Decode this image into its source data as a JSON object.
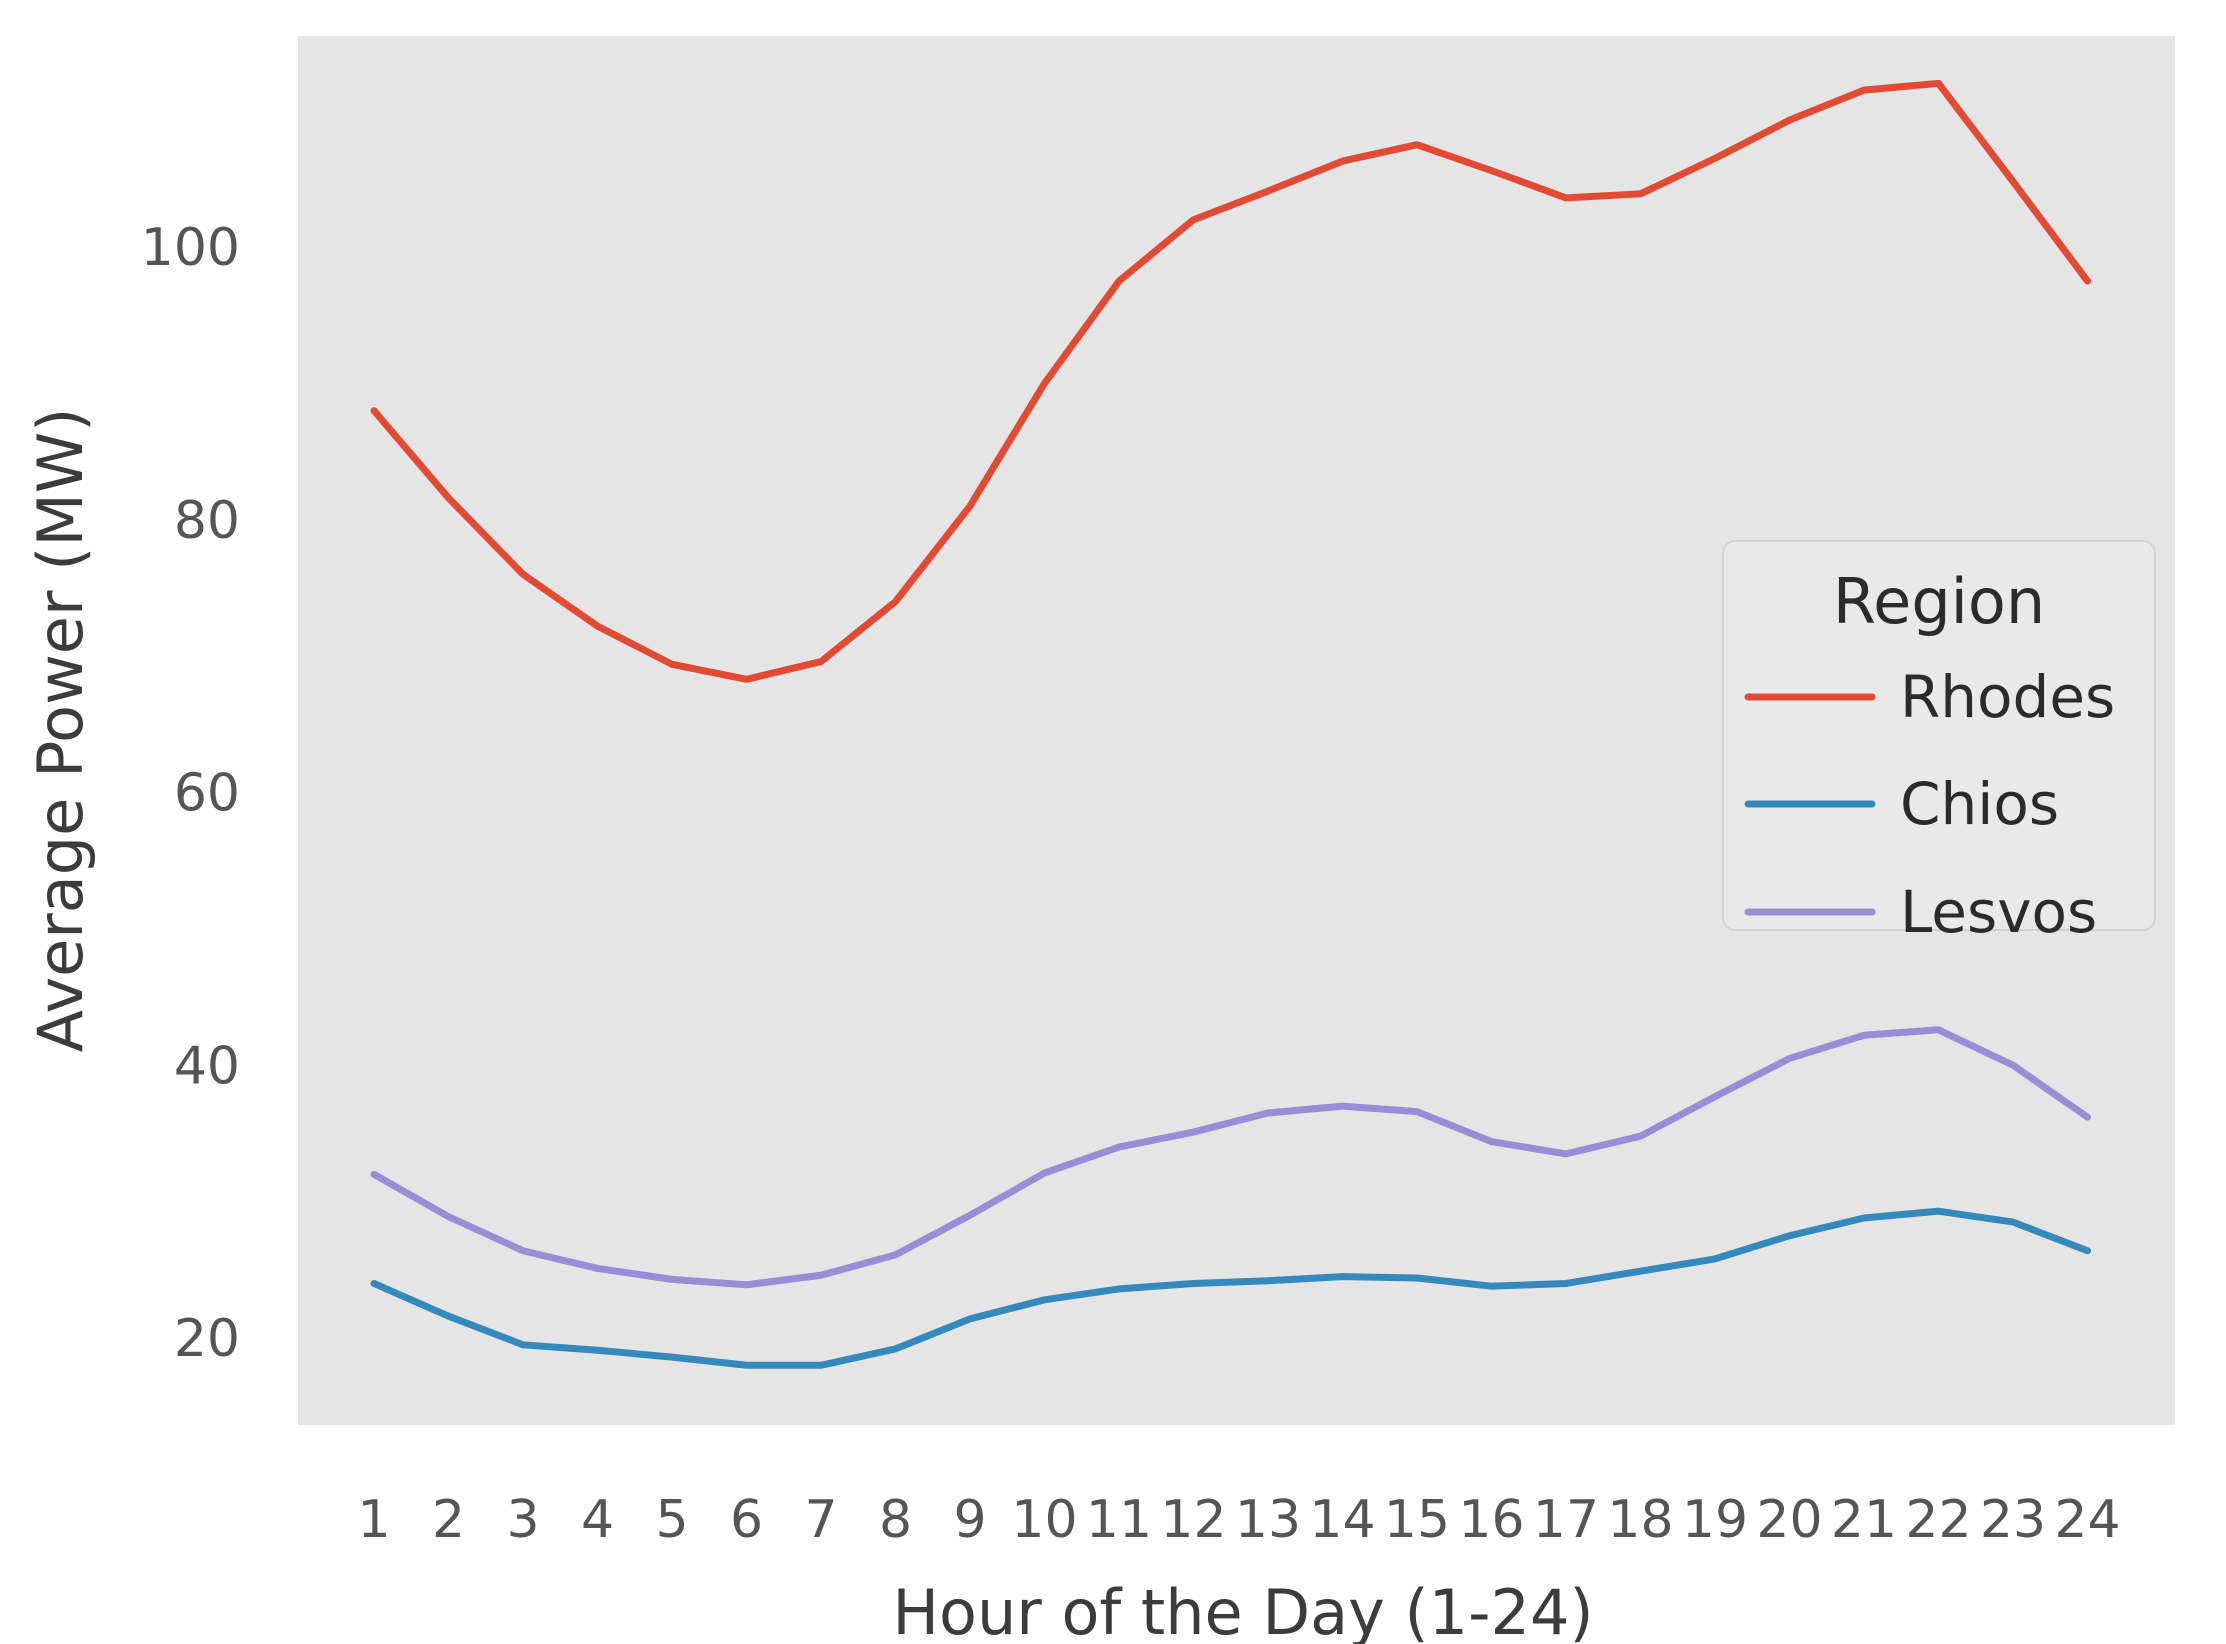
{
  "figure": {
    "background": "#ffffff"
  },
  "chart_data": {
    "type": "line",
    "title": "",
    "xlabel": "Hour of the Day (1-24)",
    "ylabel": "Average Power (MW)",
    "x": [
      1,
      2,
      3,
      4,
      5,
      6,
      7,
      8,
      9,
      10,
      11,
      12,
      13,
      14,
      15,
      16,
      17,
      18,
      19,
      20,
      21,
      22,
      23,
      24
    ],
    "yticks": [
      20,
      40,
      60,
      80,
      100
    ],
    "ylim": [
      13.6,
      115.5
    ],
    "xlim": [
      -0.1,
      25.2
    ],
    "grid": false,
    "legend_position": "center-right",
    "plot_background": "#e5e5e5",
    "tick_color": "#555555",
    "label_color": "#3c3c3c",
    "legend_text_color": "#2b2b2b",
    "legend_face_color": "#e9e9e9",
    "legend_edge_color": "#d2d2d2",
    "legend": {
      "title": "Region"
    },
    "series": [
      {
        "name": "Rhodes",
        "color": "#E24A33",
        "values": [
          88.0,
          81.6,
          76.0,
          72.2,
          69.4,
          68.3,
          69.6,
          74.0,
          81.0,
          90.0,
          97.5,
          102.0,
          104.1,
          106.3,
          107.5,
          105.6,
          103.6,
          103.9,
          106.5,
          109.3,
          111.5,
          112.0,
          104.8,
          97.5
        ]
      },
      {
        "name": "Chios",
        "color": "#348ABD",
        "values": [
          24.0,
          21.6,
          19.5,
          19.1,
          18.6,
          18.0,
          18.0,
          19.2,
          21.4,
          22.8,
          23.6,
          24.0,
          24.2,
          24.5,
          24.4,
          23.8,
          24.0,
          24.9,
          25.8,
          27.5,
          28.8,
          29.3,
          28.5,
          26.4
        ]
      },
      {
        "name": "Lesvos",
        "color": "#988ED5",
        "values": [
          32.0,
          28.9,
          26.4,
          25.1,
          24.3,
          23.9,
          24.6,
          26.1,
          29.0,
          32.1,
          34.0,
          35.1,
          36.5,
          37.0,
          36.6,
          34.4,
          33.5,
          34.8,
          37.7,
          40.5,
          42.2,
          42.6,
          40.0,
          36.2
        ]
      }
    ]
  }
}
